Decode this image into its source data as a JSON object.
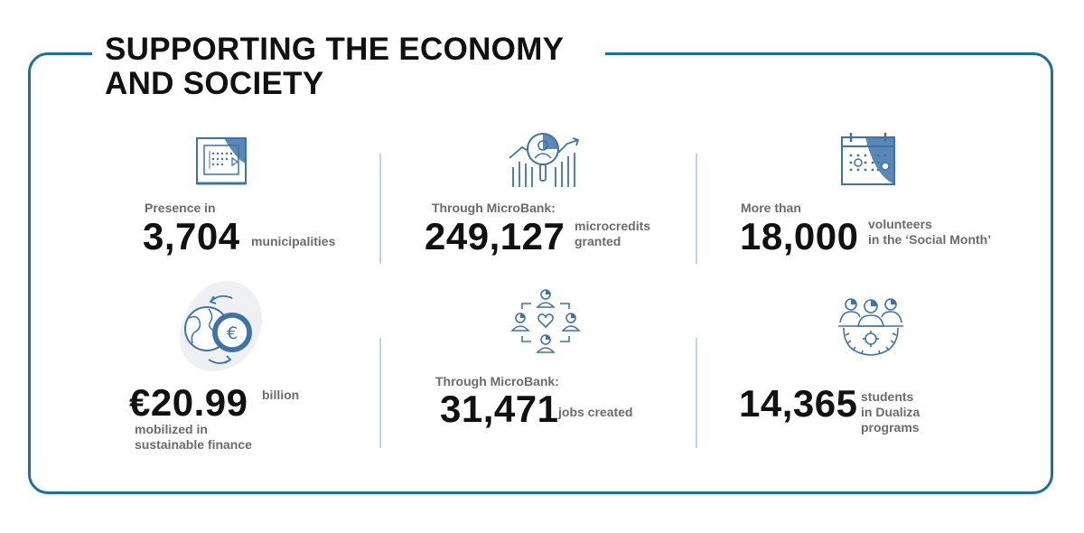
{
  "title": {
    "line1": "SUPPORTING THE ECONOMY",
    "line2": "AND SOCIETY"
  },
  "colors": {
    "accent": "#1e6fa1",
    "icon_fill": "#3d73a8",
    "icon_light": "#d9e4ef",
    "text_dark": "#111111",
    "text_grey": "#6b6b6b",
    "divider": "#b9d6ec"
  },
  "stats": [
    {
      "icon": "calendar-board-icon",
      "lead": "Presence in",
      "value": "3,704",
      "label1": "municipalities",
      "label2": ""
    },
    {
      "icon": "growth-person-icon",
      "lead": "Through MicroBank:",
      "value": "249,127",
      "label1": "microcredits",
      "label2": "granted"
    },
    {
      "icon": "calendar-icon",
      "lead": "More than",
      "value": "18,000",
      "label1": "volunteers",
      "label2": "in the ‘Social Month’"
    },
    {
      "icon": "globe-euro-icon",
      "lead": "",
      "value": "€20.99",
      "label1": "billion",
      "label2": "mobilized in",
      "label3": "sustainable finance"
    },
    {
      "icon": "people-network-icon",
      "lead": "Through MicroBank:",
      "value": "31,471",
      "label1": "jobs created",
      "label2": ""
    },
    {
      "icon": "team-gear-icon",
      "lead": "",
      "value": "14,365",
      "label1": "students",
      "label2": "in Dualiza",
      "label3": "programs"
    }
  ]
}
